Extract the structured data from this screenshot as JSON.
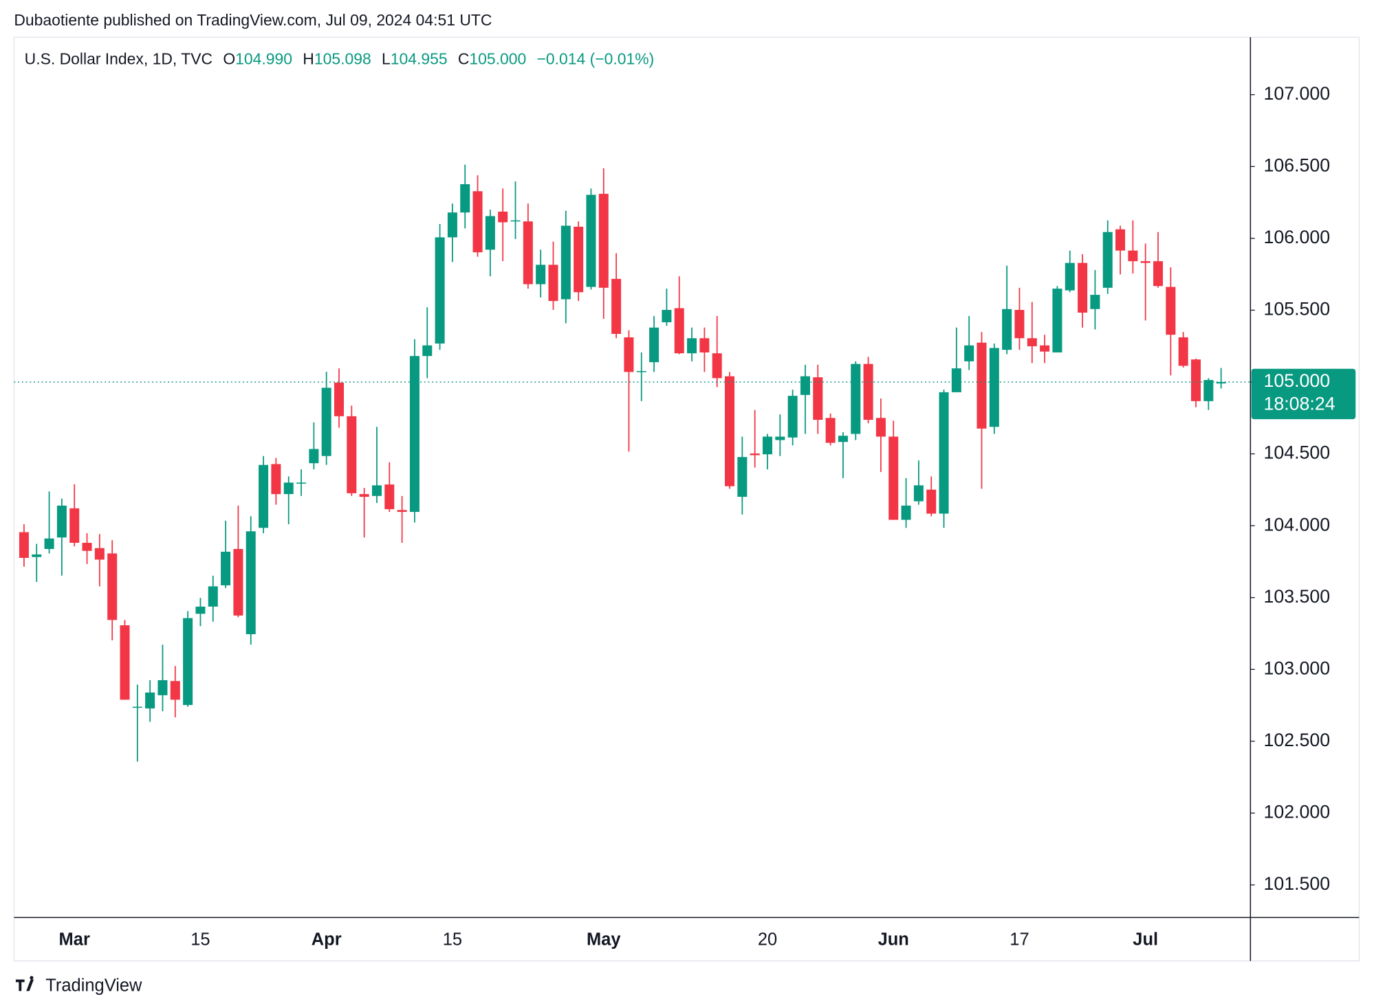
{
  "header": {
    "published": "Dubaotiente published on TradingView.com, Jul 09, 2024 04:51 UTC"
  },
  "footer": {
    "brand": "TradingView"
  },
  "chart_data": {
    "type": "candlestick",
    "legend": {
      "symbol": "U.S. Dollar Index, 1D, TVC",
      "items": [
        {
          "key": "O",
          "value": "104.990"
        },
        {
          "key": "H",
          "value": "105.098"
        },
        {
          "key": "L",
          "value": "104.955"
        },
        {
          "key": "C",
          "value": "105.000"
        }
      ],
      "change": "−0.014 (−0.01%)"
    },
    "last_price_label": "105.000",
    "countdown": "18:08:24",
    "up_color": "#089981",
    "down_color": "#f23645",
    "categories": [
      null,
      null,
      null,
      null,
      "Mar",
      null,
      null,
      null,
      null,
      null,
      null,
      null,
      null,
      null,
      "15",
      null,
      null,
      null,
      null,
      null,
      null,
      null,
      null,
      null,
      "Apr",
      null,
      null,
      null,
      null,
      null,
      null,
      null,
      null,
      null,
      "15",
      null,
      null,
      null,
      null,
      null,
      null,
      null,
      null,
      null,
      null,
      null,
      "May",
      null,
      null,
      null,
      null,
      null,
      null,
      null,
      null,
      null,
      null,
      null,
      null,
      "20",
      null,
      null,
      null,
      null,
      null,
      null,
      null,
      null,
      null,
      "Jun",
      null,
      null,
      null,
      null,
      null,
      null,
      null,
      null,
      null,
      "17",
      null,
      null,
      null,
      null,
      null,
      null,
      null,
      null,
      null,
      "Jul",
      null,
      null,
      null,
      null,
      null,
      null
    ],
    "open": [
      103.955,
      103.782,
      103.838,
      103.918,
      104.121,
      103.881,
      103.844,
      103.807,
      103.307,
      102.734,
      102.728,
      102.82,
      102.919,
      102.752,
      103.387,
      103.437,
      103.585,
      103.838,
      103.245,
      103.985,
      104.429,
      104.22,
      104.294,
      104.435,
      104.485,
      104.996,
      104.762,
      104.22,
      104.207,
      104.287,
      104.109,
      104.096,
      105.181,
      105.268,
      106.007,
      106.18,
      106.328,
      105.921,
      106.186,
      106.118,
      106.118,
      105.681,
      105.816,
      105.576,
      106.081,
      105.662,
      106.31,
      105.718,
      105.311,
      105.07,
      105.138,
      105.416,
      105.514,
      105.2,
      105.305,
      105.2,
      105.04,
      104.201,
      104.503,
      104.497,
      104.596,
      104.614,
      104.91,
      105.033,
      104.75,
      104.583,
      104.639,
      105.126,
      104.75,
      104.62,
      104.041,
      104.17,
      104.251,
      104.084,
      104.929,
      105.144,
      105.274,
      104.688,
      105.224,
      105.502,
      105.305,
      105.255,
      105.206,
      105.638,
      105.829,
      105.508,
      105.656,
      106.063,
      105.915,
      105.841,
      105.841,
      105.662,
      105.311,
      105.157,
      104.867,
      104.99
    ],
    "high": [
      104.01,
      103.874,
      104.238,
      104.189,
      104.288,
      103.948,
      103.942,
      103.899,
      103.344,
      102.894,
      102.925,
      103.172,
      103.024,
      103.406,
      103.498,
      103.652,
      104.035,
      104.14,
      104.066,
      104.485,
      104.472,
      104.343,
      104.392,
      104.719,
      105.071,
      105.095,
      104.836,
      104.263,
      104.688,
      104.441,
      104.207,
      105.298,
      105.52,
      106.1,
      106.242,
      106.513,
      106.439,
      106.199,
      106.347,
      106.396,
      106.242,
      105.921,
      105.977,
      106.192,
      106.118,
      106.347,
      106.488,
      105.897,
      105.36,
      105.206,
      105.459,
      105.65,
      105.736,
      105.379,
      105.379,
      105.459,
      105.07,
      104.62,
      104.805,
      104.639,
      104.775,
      104.947,
      105.12,
      105.12,
      104.781,
      104.651,
      105.144,
      105.175,
      104.885,
      104.731,
      104.331,
      104.454,
      104.343,
      104.947,
      105.379,
      105.459,
      105.348,
      105.268,
      105.81,
      105.656,
      105.557,
      105.329,
      105.668,
      105.915,
      105.89,
      105.779,
      106.125,
      106.088,
      106.125,
      105.964,
      106.044,
      105.798,
      105.348,
      105.163,
      105.027,
      105.098
    ],
    "low": [
      103.714,
      103.609,
      103.807,
      103.653,
      103.856,
      103.733,
      103.578,
      103.202,
      102.789,
      102.358,
      102.635,
      102.709,
      102.666,
      102.74,
      103.301,
      103.332,
      103.566,
      103.363,
      103.172,
      103.948,
      104.146,
      104.01,
      104.207,
      104.392,
      104.423,
      104.682,
      104.207,
      103.918,
      104.158,
      104.096,
      103.881,
      104.022,
      105.027,
      105.224,
      105.835,
      106.069,
      105.872,
      105.736,
      105.841,
      105.995,
      105.65,
      105.588,
      105.502,
      105.409,
      105.564,
      105.644,
      105.44,
      105.305,
      104.516,
      104.867,
      105.07,
      105.391,
      105.194,
      105.144,
      105.07,
      104.965,
      104.257,
      104.078,
      104.405,
      104.392,
      104.485,
      104.559,
      104.639,
      104.639,
      104.559,
      104.331,
      104.596,
      104.713,
      104.374,
      104.041,
      103.985,
      104.146,
      104.066,
      103.985,
      104.929,
      105.083,
      104.257,
      104.639,
      105.194,
      105.224,
      105.132,
      105.132,
      105.206,
      105.625,
      105.379,
      105.366,
      105.613,
      105.749,
      105.755,
      105.428,
      105.656,
      105.046,
      105.101,
      104.824,
      104.805,
      104.955
    ],
    "close": [
      103.776,
      103.8,
      103.911,
      104.14,
      103.881,
      103.825,
      103.764,
      103.344,
      102.789,
      102.74,
      102.839,
      102.925,
      102.789,
      103.357,
      103.437,
      103.578,
      103.819,
      103.375,
      103.961,
      104.423,
      104.22,
      104.3,
      104.3,
      104.534,
      104.96,
      104.762,
      104.226,
      104.201,
      104.281,
      104.115,
      104.096,
      105.181,
      105.255,
      106.007,
      106.18,
      106.377,
      105.903,
      106.155,
      106.112,
      106.125,
      105.681,
      105.816,
      105.564,
      106.088,
      105.625,
      106.303,
      105.656,
      105.335,
      105.07,
      105.076,
      105.379,
      105.502,
      105.2,
      105.305,
      105.206,
      105.027,
      104.275,
      104.478,
      104.491,
      104.62,
      104.62,
      104.904,
      105.04,
      104.737,
      104.577,
      104.626,
      105.126,
      104.737,
      104.62,
      104.041,
      104.14,
      104.281,
      104.084,
      104.929,
      105.095,
      105.255,
      104.676,
      105.237,
      105.508,
      105.305,
      105.249,
      105.212,
      105.65,
      105.829,
      105.483,
      105.607,
      106.044,
      105.915,
      105.841,
      105.829,
      105.668,
      105.329,
      105.113,
      104.867,
      105.014,
      105.0
    ],
    "ylim": [
      101.273,
      107.4
    ],
    "yticks": [
      {
        "value": 101.5,
        "label": "101.500"
      },
      {
        "value": 102,
        "label": "102.000"
      },
      {
        "value": 102.5,
        "label": "102.500"
      },
      {
        "value": 103,
        "label": "103.000"
      },
      {
        "value": 103.5,
        "label": "103.500"
      },
      {
        "value": 104,
        "label": "104.000"
      },
      {
        "value": 104.5,
        "label": "104.500"
      },
      {
        "value": 105,
        "label": "105.000"
      },
      {
        "value": 105.5,
        "label": "105.500"
      },
      {
        "value": 106,
        "label": "106.000"
      },
      {
        "value": 106.5,
        "label": "106.500"
      },
      {
        "value": 107,
        "label": "107.000"
      }
    ],
    "grid": false
  }
}
